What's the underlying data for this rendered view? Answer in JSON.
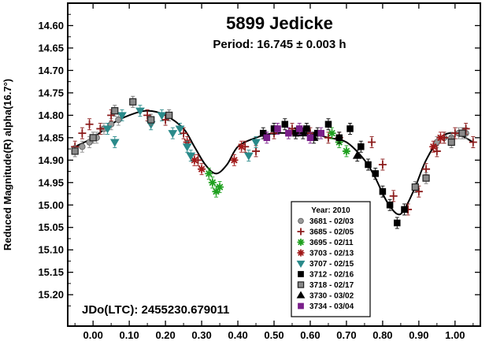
{
  "chart_data": {
    "type": "scatter",
    "title": "5899 Jedicke",
    "subtitle": "Period: 16.745 ± 0.003 h",
    "xlabel": "",
    "ylabel": "Reduced Magnitude(R) alpha(16.7°)",
    "xlim": [
      -0.07,
      1.07
    ],
    "ylim": [
      14.55,
      15.27
    ],
    "y_inverted": true,
    "grid": false,
    "x_ticks": [
      "0.00",
      "0.10",
      "0.20",
      "0.30",
      "0.40",
      "0.50",
      "0.60",
      "0.70",
      "0.80",
      "0.90",
      "1.00"
    ],
    "y_ticks": [
      "14.60",
      "14.65",
      "14.70",
      "14.75",
      "14.80",
      "14.85",
      "14.90",
      "14.95",
      "15.00",
      "15.05",
      "15.10",
      "15.15",
      "15.20"
    ],
    "annotation": "JDo(LTC): 2455230.679011",
    "legend": {
      "title": "Year: 2010",
      "placement": "lower-right",
      "entries": [
        {
          "label": "3681 - 02/03",
          "marker": "circle",
          "color": "#8c8c8c"
        },
        {
          "label": "3685 - 02/05",
          "marker": "plus",
          "color": "#8b1a1a"
        },
        {
          "label": "3695 - 02/11",
          "marker": "asterisk",
          "color": "#1ea01e"
        },
        {
          "label": "3703 - 02/13",
          "marker": "star",
          "color": "#a01818"
        },
        {
          "label": "3707 - 02/15",
          "marker": "triangle-down",
          "color": "#2a8a8a"
        },
        {
          "label": "3712 - 02/16",
          "marker": "square",
          "color": "#000000"
        },
        {
          "label": "3718 - 02/17",
          "marker": "square-gray",
          "color": "#707070"
        },
        {
          "label": "3730 - 03/02",
          "marker": "triangle-up",
          "color": "#000000"
        },
        {
          "label": "3734 - 03/04",
          "marker": "square",
          "color": "#7a1f8a"
        }
      ]
    },
    "fit_curve": {
      "x": [
        -0.05,
        0.0,
        0.05,
        0.1,
        0.15,
        0.2,
        0.25,
        0.28,
        0.31,
        0.34,
        0.37,
        0.4,
        0.45,
        0.5,
        0.55,
        0.6,
        0.65,
        0.7,
        0.75,
        0.78,
        0.81,
        0.84,
        0.86,
        0.89,
        0.92,
        0.96,
        1.0,
        1.05
      ],
      "y": [
        14.87,
        14.85,
        14.82,
        14.8,
        14.79,
        14.8,
        14.83,
        14.87,
        14.91,
        14.93,
        14.91,
        14.87,
        14.85,
        14.84,
        14.84,
        14.84,
        14.85,
        14.86,
        14.9,
        14.94,
        14.99,
        15.02,
        15.01,
        14.96,
        14.9,
        14.85,
        14.84,
        14.86
      ]
    },
    "series": [
      {
        "name": "3681 - 02/03",
        "marker": "circle",
        "x": [
          -0.03,
          -0.01,
          0.01,
          0.03,
          0.05,
          0.07,
          0.95,
          0.97,
          0.99,
          1.01,
          1.03
        ],
        "y": [
          14.87,
          14.86,
          14.85,
          14.83,
          14.82,
          14.81,
          14.86,
          14.85,
          14.85,
          14.84,
          14.84
        ]
      },
      {
        "name": "3685 - 02/05",
        "marker": "plus",
        "x": [
          -0.05,
          -0.03,
          -0.01,
          0.02,
          0.05,
          0.15,
          0.2,
          0.25,
          0.29,
          0.42,
          0.45,
          0.5,
          0.55,
          0.6,
          0.65,
          0.68,
          0.77,
          0.8,
          0.83,
          0.87,
          0.9,
          0.92,
          0.95,
          0.97,
          1.0,
          1.03,
          1.05
        ],
        "y": [
          14.87,
          14.84,
          14.82,
          14.83,
          14.8,
          14.8,
          14.81,
          14.84,
          14.9,
          14.87,
          14.88,
          14.84,
          14.83,
          14.84,
          14.85,
          14.85,
          14.86,
          14.91,
          14.98,
          15.01,
          14.97,
          14.92,
          14.88,
          14.85,
          14.84,
          14.83,
          14.86
        ]
      },
      {
        "name": "3695 - 02/11",
        "marker": "asterisk",
        "x": [
          0.32,
          0.33,
          0.34,
          0.35,
          0.66,
          0.68,
          0.7
        ],
        "y": [
          14.93,
          14.95,
          14.97,
          14.96,
          14.84,
          14.86,
          14.88
        ]
      },
      {
        "name": "3703 - 02/13",
        "marker": "star",
        "x": [
          0.26,
          0.28,
          0.3,
          0.39,
          0.41,
          0.94,
          0.96
        ],
        "y": [
          14.86,
          14.9,
          14.92,
          14.9,
          14.87,
          14.87,
          14.85
        ]
      },
      {
        "name": "3707 - 02/15",
        "marker": "triangle-down",
        "x": [
          0.04,
          0.06,
          0.08,
          0.13,
          0.16,
          0.19,
          0.22,
          0.24,
          0.26,
          0.27,
          0.43,
          0.45
        ],
        "y": [
          14.83,
          14.86,
          14.8,
          14.79,
          14.82,
          14.8,
          14.84,
          14.83,
          14.87,
          14.89,
          14.89,
          14.86
        ]
      },
      {
        "name": "3712 - 02/16",
        "marker": "square",
        "x": [
          0.47,
          0.5,
          0.53,
          0.56,
          0.59,
          0.62,
          0.65,
          0.68,
          0.71,
          0.74,
          0.76,
          0.78,
          0.8,
          0.82,
          0.84,
          0.86
        ],
        "y": [
          14.84,
          14.83,
          14.82,
          14.84,
          14.83,
          14.84,
          14.82,
          14.85,
          14.83,
          14.87,
          14.91,
          14.93,
          14.97,
          15.0,
          15.04,
          15.01
        ]
      },
      {
        "name": "3718 - 02/17",
        "marker": "square-gray",
        "x": [
          -0.05,
          0.0,
          0.06,
          0.11,
          0.16,
          0.21,
          0.89,
          0.92,
          0.99,
          1.02
        ],
        "y": [
          14.88,
          14.85,
          14.79,
          14.77,
          14.81,
          14.8,
          14.96,
          14.94,
          14.86,
          14.84
        ]
      },
      {
        "name": "3730 - 03/02",
        "marker": "triangle-up",
        "x": [
          0.58,
          0.61,
          0.73
        ],
        "y": [
          14.84,
          14.85,
          14.89
        ]
      },
      {
        "name": "3734 - 03/04",
        "marker": "square",
        "x": [
          0.48,
          0.51,
          0.54,
          0.57,
          0.6,
          0.63
        ],
        "y": [
          14.85,
          14.83,
          14.84,
          14.83,
          14.85,
          14.84
        ]
      }
    ]
  }
}
